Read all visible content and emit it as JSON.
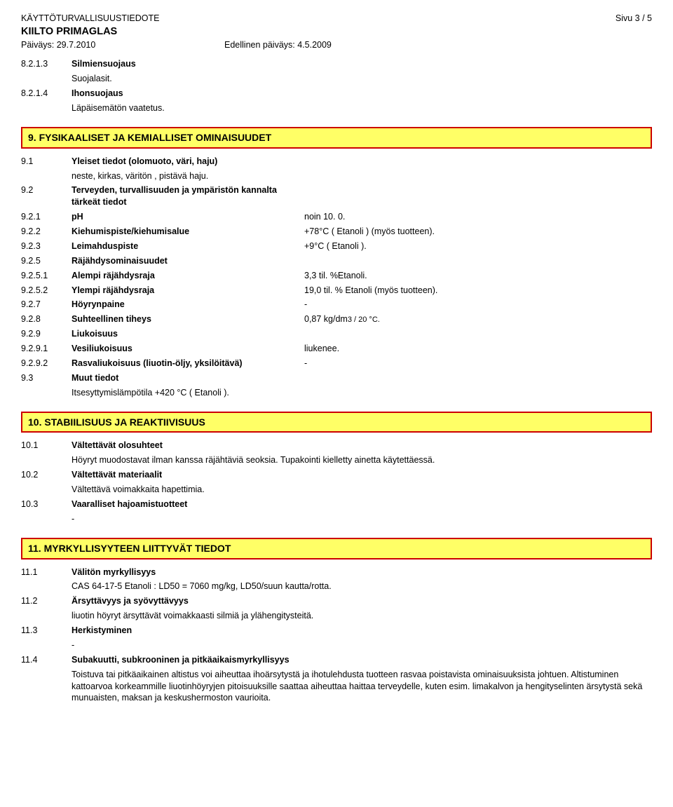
{
  "header": {
    "doc_title": "KÄYTTÖTURVALLISUUSTIEDOTE",
    "doc_subtitle": "KIILTO PRIMAGLAS",
    "page_indicator": "Sivu  3 / 5",
    "date_current": "Päiväys: 29.7.2010",
    "date_previous": "Edellinen päiväys: 4.5.2009"
  },
  "intro_rows": [
    {
      "num": "8.2.1.3",
      "label": "Silmiensuojaus",
      "label_bold": true,
      "value": "",
      "body": "Suojalasit."
    },
    {
      "num": "8.2.1.4",
      "label": "Ihonsuojaus",
      "label_bold": true,
      "value": "",
      "body": "Läpäisemätön vaatetus."
    }
  ],
  "sections": [
    {
      "heading": "9. FYSIKAALISET JA KEMIALLISET OMINAISUUDET",
      "rows": [
        {
          "num": "9.1",
          "label": "Yleiset tiedot (olomuoto, väri, haju)",
          "label_bold": true,
          "value": "",
          "body": "neste, kirkas, väritön , pistävä  haju."
        },
        {
          "num": "9.2",
          "label": "Terveyden, turvallisuuden ja ympäristön kannalta tärkeät tiedot",
          "label_bold": true,
          "value": ""
        },
        {
          "num": "9.2.1",
          "label": "pH",
          "label_bold": true,
          "value": "noin 10. 0."
        },
        {
          "num": "9.2.2",
          "label": "Kiehumispiste/kiehumisalue",
          "label_bold": true,
          "value": "+78°C ( Etanoli ) (myös tuotteen)."
        },
        {
          "num": "9.2.3",
          "label": "Leimahduspiste",
          "label_bold": true,
          "value": "+9°C ( Etanoli )."
        },
        {
          "num": "9.2.5",
          "label": "Räjähdysominaisuudet",
          "label_bold": true,
          "value": ""
        },
        {
          "num": "9.2.5.1",
          "label": "Alempi räjähdysraja",
          "label_bold": true,
          "value": "3,3 til. %Etanoli."
        },
        {
          "num": "9.2.5.2",
          "label": "Ylempi räjähdysraja",
          "label_bold": true,
          "value": "19,0 til. % Etanoli (myös tuotteen)."
        },
        {
          "num": "9.2.7",
          "label": "Höyrynpaine",
          "label_bold": true,
          "value": "-"
        },
        {
          "num": "9.2.8",
          "label": "Suhteellinen tiheys",
          "label_bold": true,
          "value_html": "0,87 kg/dm<span class='sub-frac'>3 / 20 °C.</span>"
        },
        {
          "num": "9.2.9",
          "label": "Liukoisuus",
          "label_bold": true,
          "value": ""
        },
        {
          "num": "9.2.9.1",
          "label": "Vesiliukoisuus",
          "label_bold": true,
          "value": "liukenee."
        },
        {
          "num": "9.2.9.2",
          "label": "Rasvaliukoisuus (liuotin-öljy, yksilöitävä)",
          "label_bold": true,
          "value": "-"
        },
        {
          "num": "9.3",
          "label": "Muut tiedot",
          "label_bold": true,
          "value": "",
          "body": "Itsesyttymislämpötila +420 °C  ( Etanoli )."
        }
      ]
    },
    {
      "heading": "10. STABIILISUUS JA REAKTIIVISUUS",
      "rows": [
        {
          "num": "10.1",
          "label": "Vältettävät olosuhteet",
          "label_bold": true,
          "value": "",
          "body": "Höyryt muodostavat ilman kanssa räjähtäviä seoksia.  Tupakointi kielletty ainetta käytettäessä."
        },
        {
          "num": "10.2",
          "label": "Vältettävät materiaalit",
          "label_bold": true,
          "value": "",
          "body": "Vältettävä voimakkaita hapettimia."
        },
        {
          "num": "10.3",
          "label": "Vaaralliset hajoamistuotteet",
          "label_bold": true,
          "value": "",
          "body": "-"
        }
      ]
    },
    {
      "heading": "11. MYRKYLLISYYTEEN LIITTYVÄT TIEDOT",
      "rows": [
        {
          "num": "11.1",
          "label": "Välitön myrkyllisyys",
          "label_bold": true,
          "value": "",
          "body": "CAS 64-17-5 Etanoli : LD50 = 7060 mg/kg, LD50/suun kautta/rotta."
        },
        {
          "num": "11.2",
          "label": "Ärsyttävyys ja syövyttävyys",
          "label_bold": true,
          "value": "",
          "body": "liuotin höyryt ärsyttävät voimakkaasti silmiä ja ylähengitysteitä."
        },
        {
          "num": "11.3",
          "label": "Herkistyminen",
          "label_bold": true,
          "value": "",
          "body": "-"
        },
        {
          "num": "11.4",
          "label": "Subakuutti, subkrooninen ja pitkäaikaismyrkyllisyys",
          "label_bold": true,
          "value": "",
          "body": "Toistuva tai pitkäaikainen altistus voi aiheuttaa ihoärsytystä ja ihotulehdusta tuotteen rasvaa poistavista ominaisuuksista johtuen.  Altistuminen kattoarvoa korkeammille liuotinhöyryjen pitoisuuksille saattaa aiheuttaa haittaa terveydelle, kuten esim. limakalvon ja hengityselinten ärsytystä sekä munuaisten, maksan ja keskushermoston vaurioita."
        }
      ]
    }
  ],
  "style": {
    "heading_bg": "#ffff66",
    "heading_border": "#cc0000",
    "body_bg": "#ffffff",
    "text_color": "#000000"
  }
}
